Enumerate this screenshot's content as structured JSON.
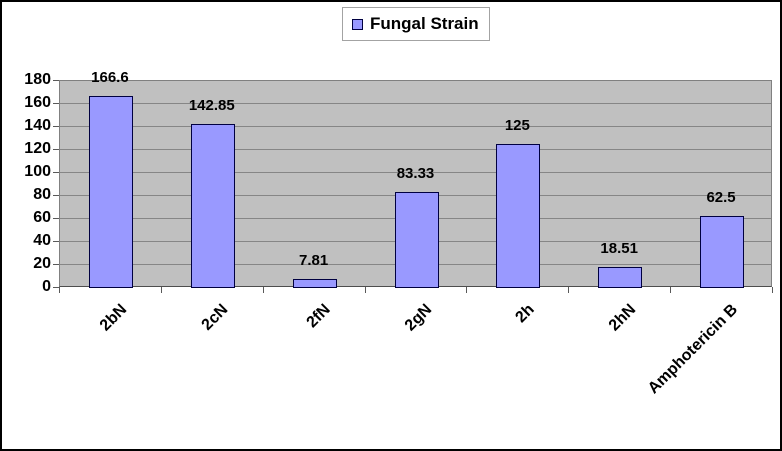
{
  "legend": {
    "label": "Fungal Strain"
  },
  "chart_data": {
    "type": "bar",
    "series_name": "Fungal Strain",
    "categories": [
      "2bN",
      "2cN",
      "2fN",
      "2gN",
      "2h",
      "2hN",
      "Amphotericin B"
    ],
    "values": [
      166.6,
      142.85,
      7.81,
      83.33,
      125,
      18.51,
      62.5
    ],
    "data_labels": [
      "166.6",
      "142.85",
      "7.81",
      "83.33",
      "125",
      "18.51",
      "62.5"
    ],
    "title": "",
    "xlabel": "",
    "ylabel": "",
    "ylim": [
      0,
      180
    ],
    "y_ticks": [
      0,
      20,
      40,
      60,
      80,
      100,
      120,
      140,
      160,
      180
    ],
    "grid": true,
    "legend_position": "top-center",
    "colors": {
      "bar_fill": "#9999FF",
      "bar_border": "#000040",
      "plot_bg": "#C0C0C0",
      "gridline": "#868686",
      "plot_border": "#808080",
      "axis_line": "#4D4D4D",
      "tick": "#595959",
      "text": "#000000",
      "frame_border": "#000000",
      "legend_border": "#A3A3A3",
      "legend_bg": "#FFFFFF"
    }
  }
}
